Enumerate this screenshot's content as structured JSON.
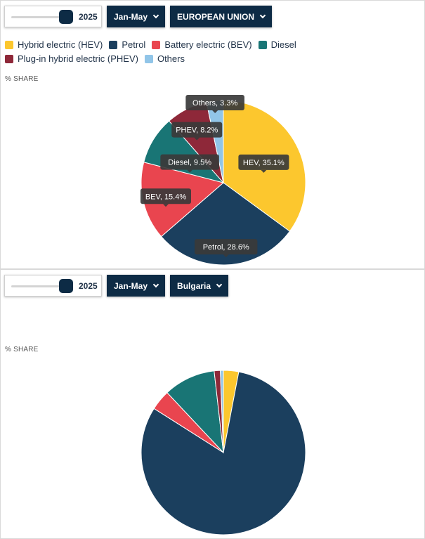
{
  "panels": [
    {
      "year": "2025",
      "period": "Jan-May",
      "region": "EUROPEAN UNION",
      "share_label": "% SHARE"
    },
    {
      "year": "2025",
      "period": "Jan-May",
      "region": "Bulgaria",
      "share_label": "% SHARE"
    }
  ],
  "legend": [
    {
      "label": "Hybrid electric (HEV)",
      "color": "#fcc72e"
    },
    {
      "label": "Petrol",
      "color": "#1b3f5e"
    },
    {
      "label": "Battery electric (BEV)",
      "color": "#e9454f"
    },
    {
      "label": "Diesel",
      "color": "#197575"
    },
    {
      "label": "Plug-in hybrid electric (PHEV)",
      "color": "#8e2839"
    },
    {
      "label": "Others",
      "color": "#91c5e8"
    }
  ],
  "chart_data": [
    {
      "type": "pie",
      "title": "",
      "region": "EUROPEAN UNION",
      "slices": [
        {
          "label": "HEV",
          "value": 35.1,
          "color": "#fcc72e"
        },
        {
          "label": "Petrol",
          "value": 28.6,
          "color": "#1b3f5e"
        },
        {
          "label": "BEV",
          "value": 15.4,
          "color": "#e9454f"
        },
        {
          "label": "Diesel",
          "value": 9.5,
          "color": "#197575"
        },
        {
          "label": "PHEV",
          "value": 8.2,
          "color": "#8e2839"
        },
        {
          "label": "Others",
          "value": 3.3,
          "color": "#91c5e8"
        }
      ],
      "data_labels": [
        "HEV, 35.1%",
        "Petrol, 28.6%",
        "BEV, 15.4%",
        "Diesel, 9.5%",
        "PHEV, 8.2%",
        "Others, 3.3%"
      ]
    },
    {
      "type": "pie",
      "title": "",
      "region": "Bulgaria",
      "slices": [
        {
          "label": "HEV",
          "value": 3.0,
          "color": "#fcc72e"
        },
        {
          "label": "Petrol",
          "value": 81.0,
          "color": "#1b3f5e"
        },
        {
          "label": "BEV",
          "value": 4.0,
          "color": "#e9454f"
        },
        {
          "label": "Diesel",
          "value": 10.2,
          "color": "#197575"
        },
        {
          "label": "PHEV",
          "value": 1.2,
          "color": "#8e2839"
        },
        {
          "label": "Others",
          "value": 0.6,
          "color": "#91c5e8"
        }
      ]
    }
  ]
}
